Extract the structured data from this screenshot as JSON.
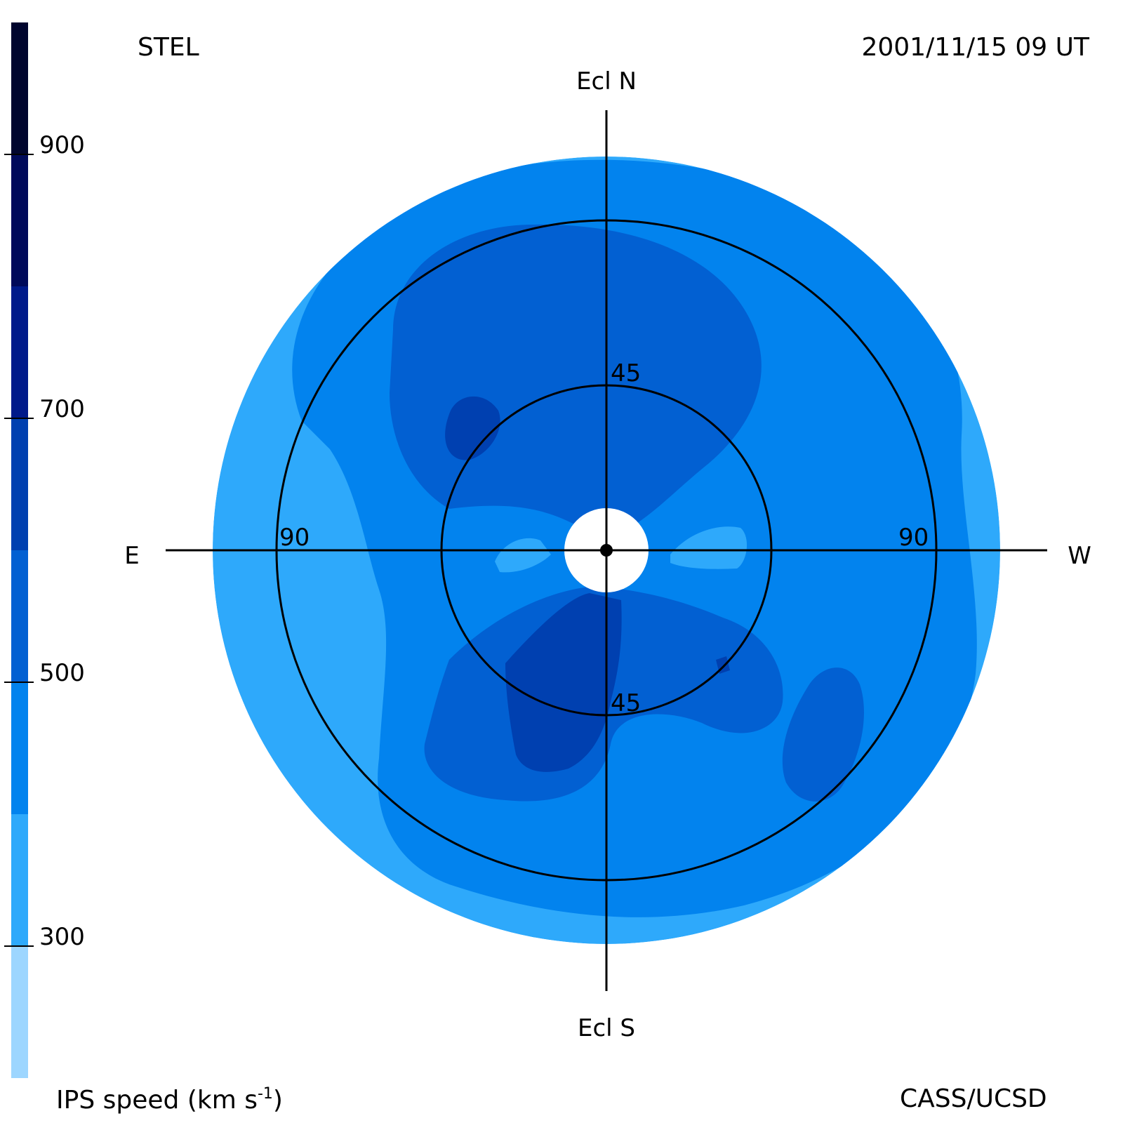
{
  "header": {
    "station": "STEL",
    "datetime": "2001/11/15 09 UT",
    "credit": "CASS/UCSD"
  },
  "colorbar": {
    "label": "IPS speed (km s",
    "label_exp": "-1",
    "label_close": ")",
    "ticks": [
      "300",
      "500",
      "700",
      "900"
    ],
    "tick_values": [
      300,
      500,
      700,
      900
    ],
    "levels": [
      {
        "from": 200,
        "to": 300,
        "color": "#9dd6ff"
      },
      {
        "from": 300,
        "to": 400,
        "color": "#2ea9fb"
      },
      {
        "from": 400,
        "to": 500,
        "color": "#0283ee"
      },
      {
        "from": 500,
        "to": 600,
        "color": "#0260d2"
      },
      {
        "from": 600,
        "to": 700,
        "color": "#0040b0"
      },
      {
        "from": 700,
        "to": 800,
        "color": "#001a8a"
      },
      {
        "from": 800,
        "to": 900,
        "color": "#000a5a"
      },
      {
        "from": 900,
        "to": 1000,
        "color": "#00052e"
      }
    ],
    "range": [
      200,
      1000
    ]
  },
  "chart_data": {
    "type": "heatmap",
    "title": "",
    "xlabel": "",
    "ylabel": "",
    "directions": {
      "top": "Ecl N",
      "bottom": "Ecl S",
      "left": "E",
      "right": "W"
    },
    "rings": [
      {
        "elongation": 45,
        "label": "45"
      },
      {
        "elongation": 90,
        "label": "90"
      }
    ],
    "ring_labels": [
      "45",
      "45",
      "90",
      "90"
    ],
    "max_elongation": 120,
    "background_speed_km_s": 350,
    "regions": [
      {
        "name": "outer-blue",
        "speed_km_s": 450
      },
      {
        "name": "upper-fast-lobe",
        "speed_km_s": 550
      },
      {
        "name": "lower-fast-lobe",
        "speed_km_s": 550
      },
      {
        "name": "lower-right-fast-lobe",
        "speed_km_s": 550
      },
      {
        "name": "upper-left-core",
        "speed_km_s": 650
      },
      {
        "name": "lower-core",
        "speed_km_s": 650
      },
      {
        "name": "near-sun-slow-east",
        "speed_km_s": 350
      },
      {
        "name": "near-sun-slow-west",
        "speed_km_s": 350
      }
    ]
  }
}
